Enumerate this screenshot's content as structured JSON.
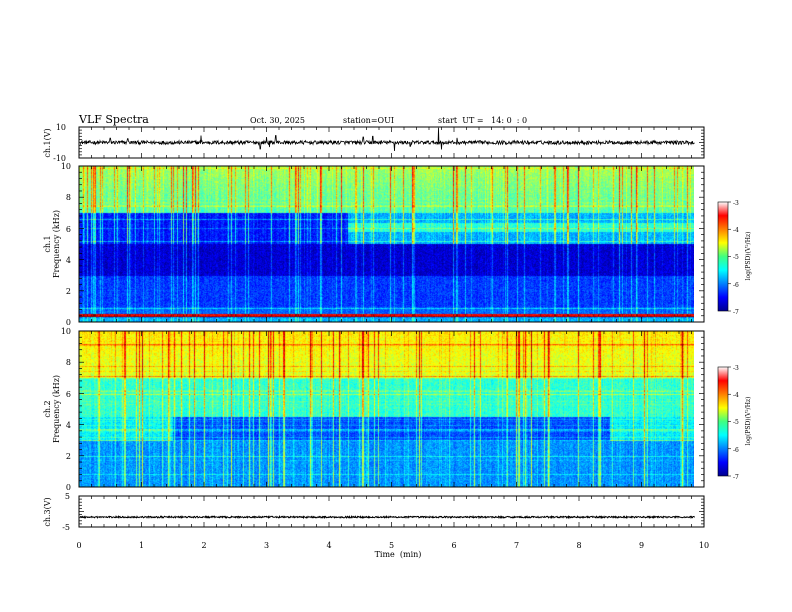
{
  "header": {
    "title": "VLF Spectra",
    "date": "Oct. 30, 2025",
    "station": "station=OUI",
    "start": "start  UT =   14: 0  : 0"
  },
  "chart_data": [
    {
      "type": "line",
      "id": "ch1_waveform",
      "ylabel": "ch.1(V)",
      "ylim": [
        -10,
        10
      ],
      "yticks": [
        "10",
        "-10"
      ],
      "xlim": [
        0,
        10
      ],
      "trace_end": 9.85,
      "baseline": 0,
      "noise_amplitude": 1.2,
      "spikes": [
        {
          "x": 0.5,
          "y": 2.8
        },
        {
          "x": 0.78,
          "y": 2.5
        },
        {
          "x": 1.95,
          "y": 4.5
        },
        {
          "x": 2.9,
          "y": -4.2
        },
        {
          "x": 3.0,
          "y": 3.5
        },
        {
          "x": 3.05,
          "y": -3.0
        },
        {
          "x": 3.15,
          "y": 4.5
        },
        {
          "x": 4.55,
          "y": 3.5
        },
        {
          "x": 4.7,
          "y": 4.0
        },
        {
          "x": 5.05,
          "y": -5.5
        },
        {
          "x": 5.3,
          "y": -2.5
        },
        {
          "x": 5.75,
          "y": 9.5
        },
        {
          "x": 5.8,
          "y": -4.5
        },
        {
          "x": 6.05,
          "y": 3.0
        }
      ]
    },
    {
      "type": "heatmap",
      "id": "ch1_spectrogram",
      "ylabel": "ch.1",
      "ylabel2": "Frequency  (kHz)",
      "ylim": [
        0,
        10
      ],
      "yticks": [
        "0",
        "2",
        "4",
        "6",
        "8",
        "10"
      ],
      "xlim": [
        0,
        10
      ],
      "data_end": 9.85,
      "colorbar": {
        "label": "log(PSD)(V²/Hz)",
        "range": [
          -7,
          -3
        ],
        "ticks": [
          "-3",
          "-4",
          "-5",
          "-6",
          "-7"
        ]
      }
    },
    {
      "type": "heatmap",
      "id": "ch2_spectrogram",
      "ylabel": "ch.2",
      "ylabel2": "Frequency  (kHz)",
      "ylim": [
        0,
        10
      ],
      "yticks": [
        "0",
        "2",
        "4",
        "6",
        "8",
        "10"
      ],
      "xlim": [
        0,
        10
      ],
      "data_end": 9.85,
      "colorbar": {
        "label": "log(PSD)(V²/Hz)",
        "range": [
          -7,
          -3
        ],
        "ticks": [
          "-3",
          "-4",
          "-5",
          "-6",
          "-7"
        ]
      }
    },
    {
      "type": "line",
      "id": "ch3_waveform",
      "ylabel": "ch.3(V)",
      "ylim": [
        -5,
        5
      ],
      "yticks": [
        "5",
        "-5"
      ],
      "xlim": [
        0,
        10
      ],
      "trace_end": 9.85,
      "baseline": -1.8,
      "noise_amplitude": 0.25,
      "xlabel": "Time  (min)",
      "xticks": [
        "0",
        "1",
        "2",
        "3",
        "4",
        "5",
        "6",
        "7",
        "8",
        "9",
        "10"
      ]
    }
  ]
}
